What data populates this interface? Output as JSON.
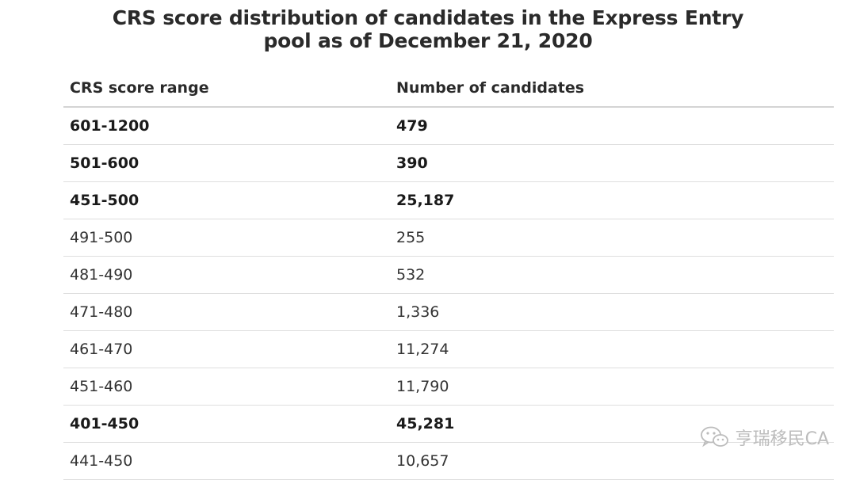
{
  "title": "CRS score distribution of candidates in the Express Entry pool as of December 21, 2020",
  "table": {
    "headers": {
      "range": "CRS score range",
      "count": "Number of candidates"
    },
    "rows": [
      {
        "range": "601-1200",
        "count": "479",
        "bold": true
      },
      {
        "range": "501-600",
        "count": "390",
        "bold": true
      },
      {
        "range": "451-500",
        "count": "25,187",
        "bold": true
      },
      {
        "range": "491-500",
        "count": "255",
        "bold": false
      },
      {
        "range": "481-490",
        "count": "532",
        "bold": false
      },
      {
        "range": "471-480",
        "count": "1,336",
        "bold": false
      },
      {
        "range": "461-470",
        "count": "11,274",
        "bold": false
      },
      {
        "range": "451-460",
        "count": "11,790",
        "bold": false
      },
      {
        "range": "401-450",
        "count": "45,281",
        "bold": true
      },
      {
        "range": "441-450",
        "count": "10,657",
        "bold": false
      }
    ]
  },
  "watermark": {
    "text": "亨瑞移民CA",
    "icon": "wechat-icon"
  }
}
